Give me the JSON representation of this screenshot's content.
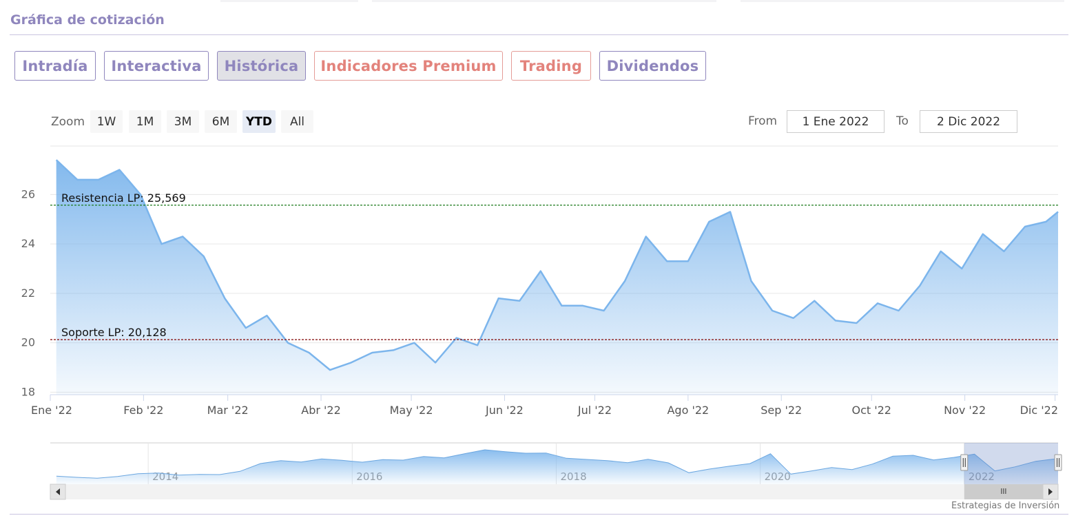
{
  "section_title": "Gráfica de cotización",
  "tabs": [
    {
      "label": "Intradía",
      "style": "normal"
    },
    {
      "label": "Interactiva",
      "style": "normal"
    },
    {
      "label": "Histórica",
      "style": "active"
    },
    {
      "label": "Indicadores Premium",
      "style": "premium"
    },
    {
      "label": "Trading",
      "style": "premium"
    },
    {
      "label": "Dividendos",
      "style": "normal"
    }
  ],
  "zoom": {
    "label": "Zoom",
    "buttons": [
      "1W",
      "1M",
      "3M",
      "6M",
      "YTD",
      "All"
    ],
    "selected": "YTD"
  },
  "range": {
    "from_label": "From",
    "from_value": "1 Ene 2022",
    "to_label": "To",
    "to_value": "2 Dic 2022"
  },
  "watermark": "Estrategias de Inversión",
  "colors": {
    "accent": "#8f86bd",
    "premium": "#e3837c",
    "series_line": "#7cb5ec",
    "resistance": "#1a7a1a",
    "support": "#8b1a1a"
  },
  "chart_data": {
    "type": "area",
    "x": [
      "2022-01-03",
      "2022-01-10",
      "2022-01-17",
      "2022-01-24",
      "2022-01-31",
      "2022-02-07",
      "2022-02-14",
      "2022-02-21",
      "2022-02-28",
      "2022-03-07",
      "2022-03-14",
      "2022-03-21",
      "2022-03-28",
      "2022-04-04",
      "2022-04-11",
      "2022-04-18",
      "2022-04-25",
      "2022-05-02",
      "2022-05-09",
      "2022-05-16",
      "2022-05-23",
      "2022-05-30",
      "2022-06-06",
      "2022-06-13",
      "2022-06-20",
      "2022-06-27",
      "2022-07-04",
      "2022-07-11",
      "2022-07-18",
      "2022-07-25",
      "2022-08-01",
      "2022-08-08",
      "2022-08-15",
      "2022-08-22",
      "2022-08-29",
      "2022-09-05",
      "2022-09-12",
      "2022-09-19",
      "2022-09-26",
      "2022-10-03",
      "2022-10-10",
      "2022-10-17",
      "2022-10-24",
      "2022-10-31",
      "2022-11-07",
      "2022-11-14",
      "2022-11-21",
      "2022-11-28",
      "2022-12-02"
    ],
    "series": [
      {
        "values": [
          27.4,
          26.6,
          26.6,
          27.0,
          26.0,
          24.0,
          24.3,
          23.5,
          21.8,
          20.6,
          21.1,
          20.0,
          19.6,
          18.9,
          19.2,
          19.6,
          19.7,
          20.0,
          19.2,
          20.2,
          19.9,
          21.8,
          21.7,
          22.9,
          21.5,
          21.5,
          21.3,
          22.5,
          24.3,
          23.3,
          23.3,
          24.9,
          25.3,
          22.5,
          21.3,
          21.0,
          21.7,
          20.9,
          20.8,
          21.6,
          21.3,
          22.3,
          23.7,
          23.0,
          24.4,
          23.7,
          24.7,
          24.9,
          25.3
        ]
      }
    ],
    "y_ticks": [
      18,
      20,
      22,
      24,
      26
    ],
    "ylim": [
      17.9,
      27.6
    ],
    "x_tick_labels": [
      "Ene '22",
      "Feb '22",
      "Mar '22",
      "Abr '22",
      "May '22",
      "Jun '22",
      "Jul '22",
      "Ago '22",
      "Sep '22",
      "Oct '22",
      "Nov '22",
      "Dic '22"
    ],
    "x_tick_dates": [
      "2022-01-01",
      "2022-02-01",
      "2022-03-01",
      "2022-04-01",
      "2022-05-01",
      "2022-06-01",
      "2022-07-01",
      "2022-08-01",
      "2022-09-01",
      "2022-10-01",
      "2022-11-01",
      "2022-12-01"
    ],
    "xlim": [
      "2022-01-01",
      "2022-12-02"
    ],
    "plot_lines": [
      {
        "label": "Resistencia LP: 25,569",
        "value": 25.569,
        "color": "#1a7a1a",
        "style": "dashed"
      },
      {
        "label": "Soporte LP: 20,128",
        "value": 20.128,
        "color": "#8b1a1a",
        "style": "dashed"
      }
    ],
    "grid": true,
    "navigator": {
      "tick_labels": [
        "2014",
        "2016",
        "2018",
        "2020",
        "2022"
      ],
      "tick_years": [
        2014,
        2016,
        2018,
        2020,
        2022
      ],
      "xlim_years": [
        2013.04,
        2022.92
      ],
      "selection_years": [
        2022.0,
        2022.92
      ],
      "ylim": [
        14,
        32
      ],
      "series": {
        "x_years": [
          2013.1,
          2013.3,
          2013.5,
          2013.7,
          2013.9,
          2014.1,
          2014.3,
          2014.5,
          2014.7,
          2014.9,
          2015.1,
          2015.3,
          2015.5,
          2015.7,
          2015.9,
          2016.1,
          2016.3,
          2016.5,
          2016.7,
          2016.9,
          2017.1,
          2017.3,
          2017.5,
          2017.7,
          2017.9,
          2018.1,
          2018.3,
          2018.5,
          2018.7,
          2018.9,
          2019.1,
          2019.3,
          2019.5,
          2019.7,
          2019.9,
          2020.1,
          2020.3,
          2020.5,
          2020.7,
          2020.9,
          2021.1,
          2021.3,
          2021.5,
          2021.7,
          2021.9,
          2022.1,
          2022.3,
          2022.5,
          2022.7,
          2022.92
        ],
        "values": [
          17.5,
          17.0,
          16.6,
          17.4,
          18.6,
          18.9,
          18.0,
          18.3,
          18.2,
          19.6,
          23.0,
          24.3,
          23.7,
          25.0,
          24.4,
          23.6,
          24.7,
          24.5,
          26.1,
          25.5,
          27.3,
          29.0,
          28.2,
          27.5,
          27.6,
          25.3,
          24.8,
          24.3,
          23.4,
          24.9,
          23.3,
          19.0,
          20.6,
          21.9,
          23.0,
          27.3,
          18.4,
          19.8,
          21.3,
          20.4,
          22.8,
          26.2,
          26.6,
          24.6,
          25.7,
          27.1,
          19.8,
          21.6,
          24.0,
          25.2
        ]
      }
    }
  }
}
